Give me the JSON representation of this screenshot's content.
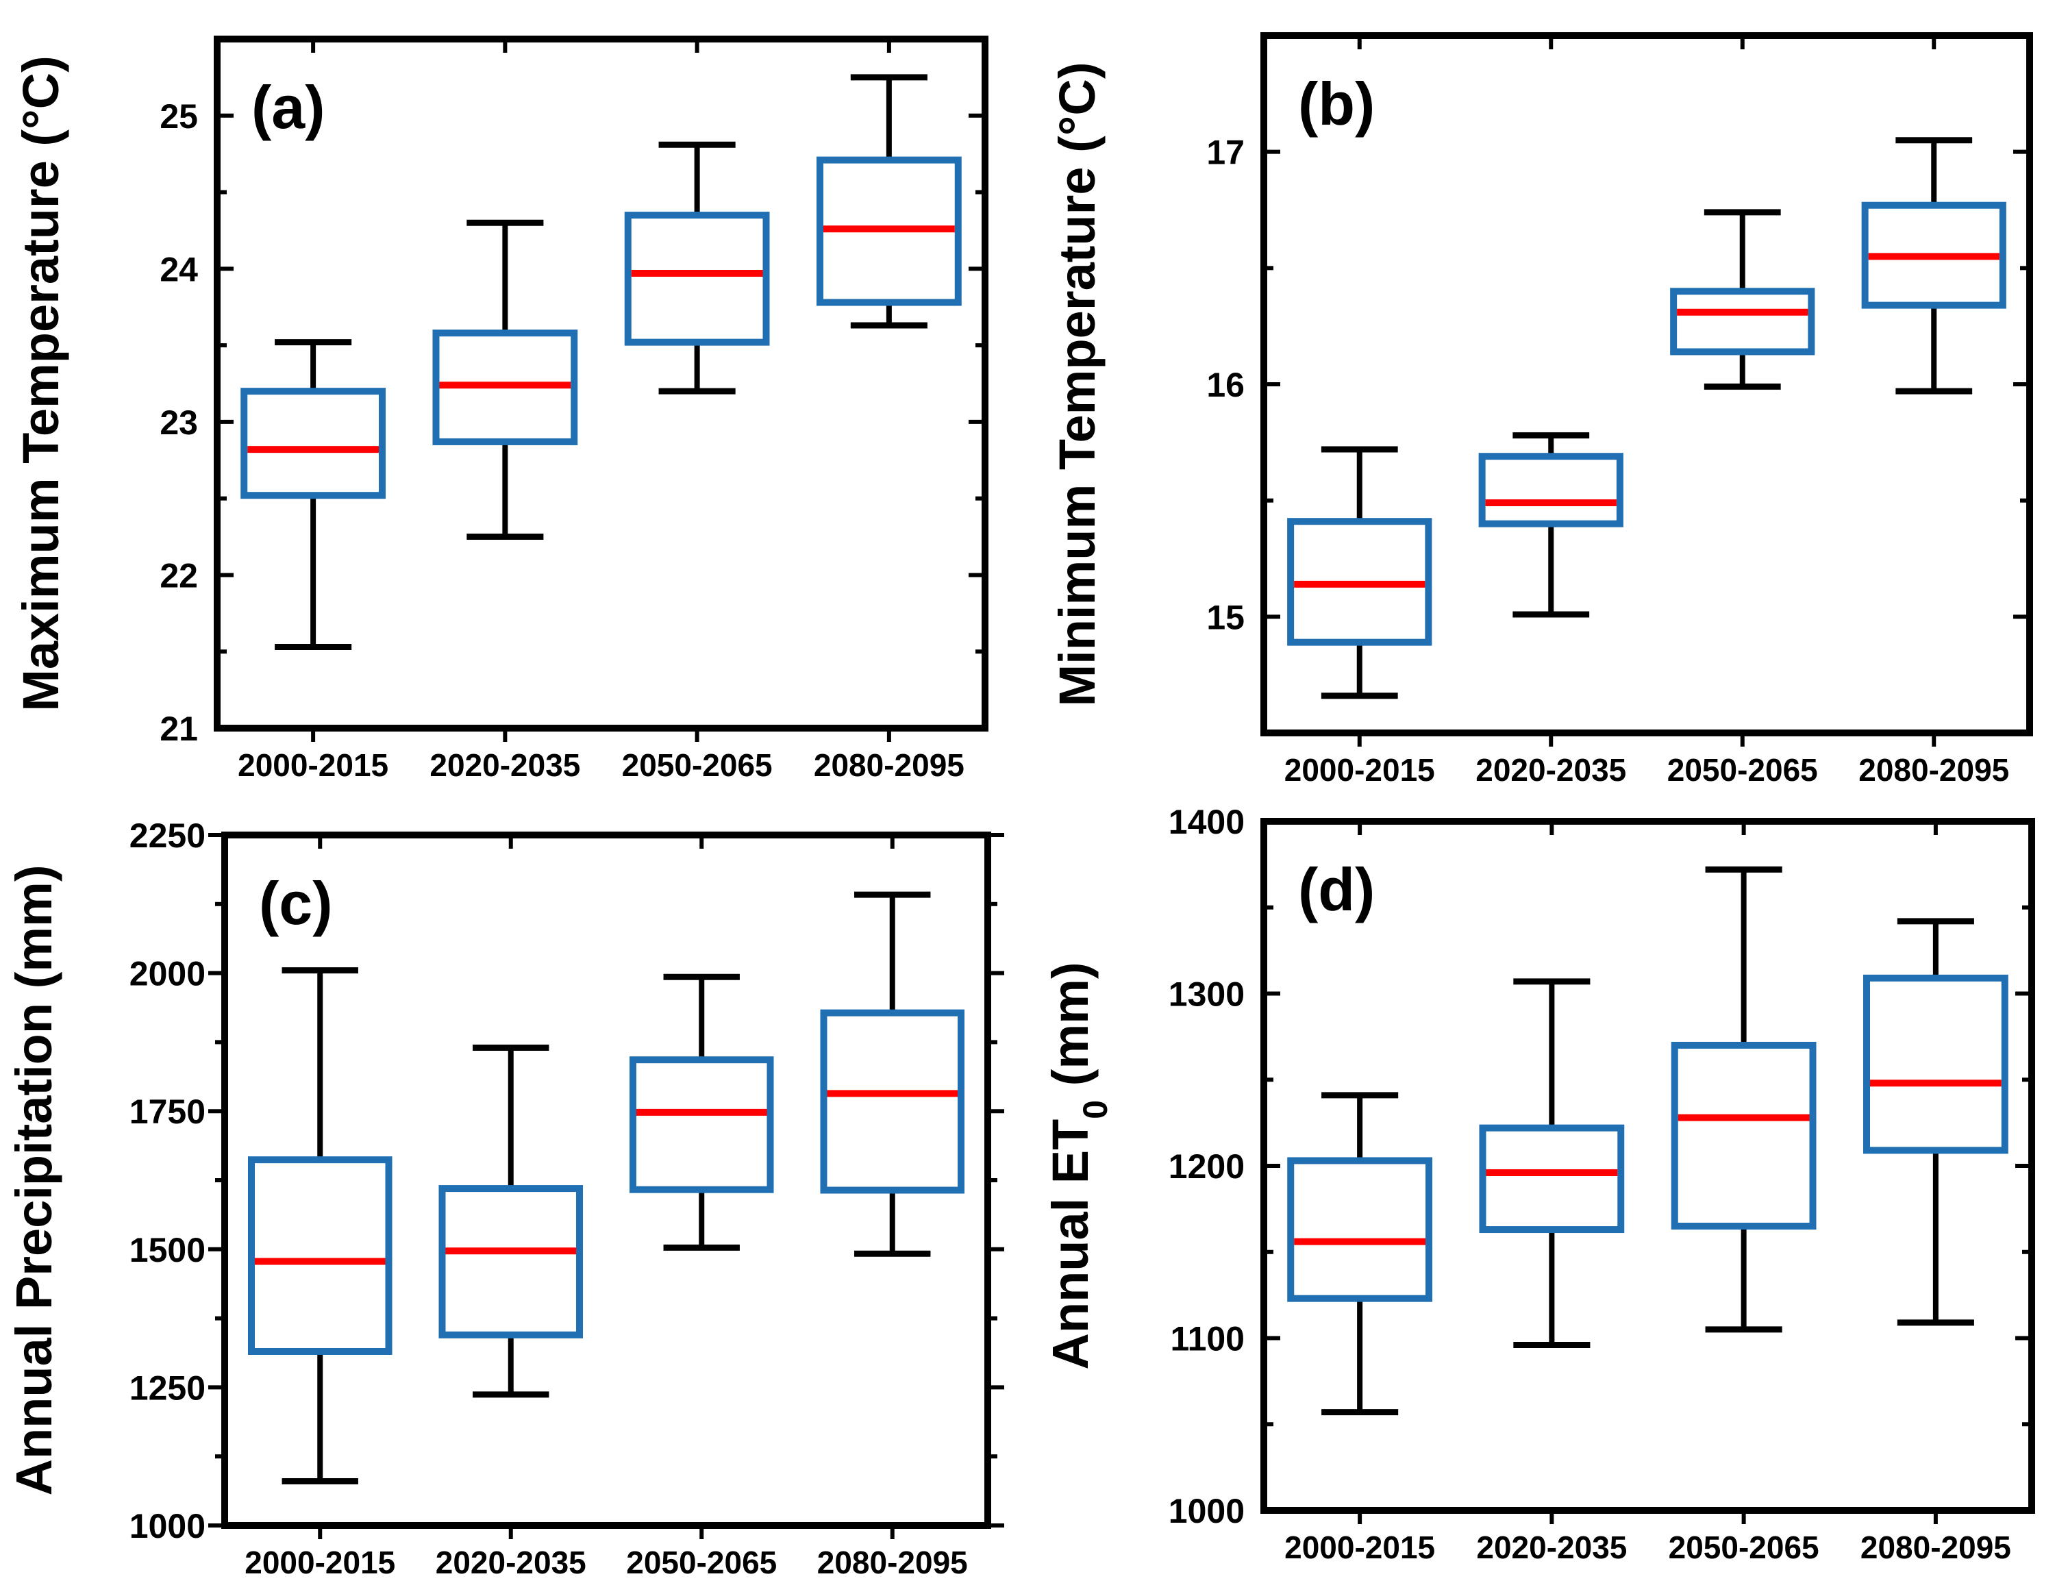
{
  "figure": {
    "box_color": "#1f6fb2",
    "median_color": "#ff0000",
    "whisker_color": "#000000",
    "frame_color": "#000000"
  },
  "chart_data": [
    {
      "type": "box",
      "panel_label": "(a)",
      "ylabel": "Maximum Temperature (°C)",
      "ylabel_sub": "",
      "ylabel_after": "",
      "ylim": [
        21,
        25.5
      ],
      "yticks": [
        21,
        22,
        23,
        24,
        25
      ],
      "ytick_labels": [
        "21",
        "22",
        "23",
        "24",
        "25"
      ],
      "categories": [
        "2000-2015",
        "2020-2035",
        "2050-2065",
        "2080-2095"
      ],
      "boxes": [
        {
          "min": 21.53,
          "q1": 22.52,
          "median": 22.82,
          "q3": 23.2,
          "max": 23.52
        },
        {
          "min": 22.25,
          "q1": 22.87,
          "median": 23.24,
          "q3": 23.58,
          "max": 24.3
        },
        {
          "min": 23.2,
          "q1": 23.52,
          "median": 23.97,
          "q3": 24.35,
          "max": 24.81
        },
        {
          "min": 23.63,
          "q1": 23.78,
          "median": 24.26,
          "q3": 24.71,
          "max": 25.25
        }
      ]
    },
    {
      "type": "box",
      "panel_label": "(b)",
      "ylabel": "Minimum Temperature (°C)",
      "ylabel_sub": "",
      "ylabel_after": "",
      "ylim": [
        14.5,
        17.5
      ],
      "yticks": [
        15,
        16,
        17
      ],
      "ytick_labels": [
        "15",
        "16",
        "17"
      ],
      "categories": [
        "2000-2015",
        "2020-2035",
        "2050-2065",
        "2080-2095"
      ],
      "boxes": [
        {
          "min": 14.66,
          "q1": 14.89,
          "median": 15.14,
          "q3": 15.41,
          "max": 15.72
        },
        {
          "min": 15.01,
          "q1": 15.4,
          "median": 15.49,
          "q3": 15.69,
          "max": 15.78
        },
        {
          "min": 15.99,
          "q1": 16.14,
          "median": 16.31,
          "q3": 16.4,
          "max": 16.74
        },
        {
          "min": 15.97,
          "q1": 16.34,
          "median": 16.55,
          "q3": 16.77,
          "max": 17.05
        }
      ]
    },
    {
      "type": "box",
      "panel_label": "(c)",
      "ylabel": "Annual Precipitation (mm)",
      "ylabel_sub": "",
      "ylabel_after": "",
      "ylim": [
        1000,
        2250
      ],
      "yticks": [
        1000,
        1250,
        1500,
        1750,
        2000,
        2250
      ],
      "ytick_labels": [
        "1000",
        "1250",
        "1500",
        "1750",
        "2000",
        "2250"
      ],
      "categories": [
        "2000-2015",
        "2020-2035",
        "2050-2065",
        "2080-2095"
      ],
      "boxes": [
        {
          "min": 1080,
          "q1": 1315,
          "median": 1478,
          "q3": 1662,
          "max": 2005
        },
        {
          "min": 1237,
          "q1": 1345,
          "median": 1497,
          "q3": 1610,
          "max": 1865
        },
        {
          "min": 1503,
          "q1": 1608,
          "median": 1748,
          "q3": 1843,
          "max": 1993
        },
        {
          "min": 1492,
          "q1": 1607,
          "median": 1782,
          "q3": 1928,
          "max": 2142
        }
      ]
    },
    {
      "type": "box",
      "panel_label": "(d)",
      "ylabel": "Annual ET",
      "ylabel_sub": "0",
      "ylabel_after": " (mm)",
      "ylim": [
        1000,
        1400
      ],
      "yticks": [
        1000,
        1100,
        1200,
        1300,
        1400
      ],
      "ytick_labels": [
        "1000",
        "1100",
        "1200",
        "1300",
        "1400"
      ],
      "categories": [
        "2000-2015",
        "2020-2035",
        "2050-2065",
        "2080-2095"
      ],
      "boxes": [
        {
          "min": 1057,
          "q1": 1123,
          "median": 1156,
          "q3": 1203,
          "max": 1241
        },
        {
          "min": 1096,
          "q1": 1163,
          "median": 1196,
          "q3": 1222,
          "max": 1307
        },
        {
          "min": 1105,
          "q1": 1165,
          "median": 1228,
          "q3": 1270,
          "max": 1372
        },
        {
          "min": 1109,
          "q1": 1209,
          "median": 1248,
          "q3": 1309,
          "max": 1342
        }
      ]
    }
  ]
}
